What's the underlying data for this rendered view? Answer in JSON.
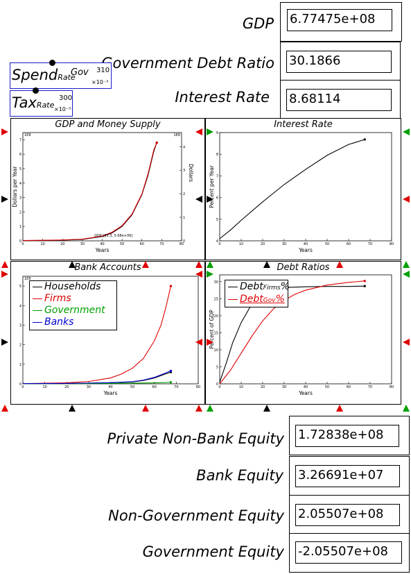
{
  "outputs": [
    {
      "label": "GDP",
      "value": "6.77475e+08"
    },
    {
      "label": "Government Debt Ratio",
      "value": "30.1866"
    },
    {
      "label": "Interest Rate",
      "value": "8.68114"
    },
    {
      "label": "Private Non-Bank Equity",
      "value": "1.72838e+08"
    },
    {
      "label": "Bank Equity",
      "value": "3.26691e+07"
    },
    {
      "label": "Non-Government Equity",
      "value": "2.05507e+08"
    },
    {
      "label": "Government Equity",
      "value": "-2.05507e+08"
    }
  ],
  "sliders": [
    {
      "main": "Spend",
      "sub": "Rate",
      "sup": "Gov",
      "value": "310",
      "multiplier": "×10⁻³"
    },
    {
      "main": "Tax",
      "sub": "Rate",
      "sup": "",
      "value": "300",
      "multiplier": "×10⁻³"
    }
  ],
  "colors": {
    "black": "#000000",
    "red": "#e00000",
    "green": "#00a000",
    "blue": "#0000d0",
    "slider_border": "#1a1ac8"
  },
  "charts": {
    "gdp": {
      "title": "GDP and Money Supply",
      "xlabel": "Years",
      "ylabel": "Dollars per Year",
      "ylabel_right": "Dollars",
      "left_scale": "1E8",
      "right_scale": "1E8",
      "xticks": [
        "0",
        "10",
        "20",
        "30",
        "40",
        "50",
        "60",
        "70",
        "80"
      ],
      "yticks_left": [
        "0",
        "1",
        "2",
        "3",
        "4",
        "5",
        "6",
        "7"
      ],
      "yticks_right": [
        "0",
        "1",
        "2",
        "3",
        "4"
      ],
      "annotation": "GDP [31.3, 5.68e+06]"
    },
    "interest": {
      "title": "Interest Rate",
      "xlabel": "Years",
      "ylabel": "Percent per Year",
      "xticks": [
        "0",
        "10",
        "20",
        "30",
        "40",
        "50",
        "60",
        "70",
        "80"
      ],
      "yticks": [
        "4",
        "5",
        "6",
        "7",
        "8",
        "9"
      ]
    },
    "bank": {
      "title": "Bank Accounts",
      "xlabel": "Years",
      "scale": "1E8",
      "xticks": [
        "0",
        "10",
        "20",
        "30",
        "40",
        "50",
        "60",
        "70",
        "80"
      ],
      "yticks": [
        "0",
        "1",
        "2",
        "3",
        "4",
        "5"
      ],
      "legend": [
        {
          "name": "Households",
          "color": "#000000"
        },
        {
          "name": "Firms",
          "color": "#e00000"
        },
        {
          "name": "Government",
          "color": "#00a000"
        },
        {
          "name": "Banks",
          "color": "#0000d0"
        }
      ]
    },
    "debt": {
      "title": "Debt Ratios",
      "xlabel": "Years",
      "ylabel": "Percent of GDP",
      "xticks": [
        "0",
        "10",
        "20",
        "30",
        "40",
        "50",
        "60",
        "70",
        "80"
      ],
      "yticks": [
        "0",
        "5",
        "10",
        "15",
        "20",
        "25",
        "30"
      ],
      "legend": [
        {
          "main": "Debt",
          "sub": "Firms",
          "suffix": "%",
          "color": "#000000"
        },
        {
          "main": "Debt",
          "sub": "Gov",
          "suffix": "%",
          "color": "#e00000"
        }
      ]
    }
  },
  "chart_data": [
    {
      "type": "line",
      "title": "GDP and Money Supply",
      "xlabel": "Years",
      "ylabel": "Dollars per Year",
      "xlim": [
        0,
        80
      ],
      "ylim": [
        0,
        7.5
      ],
      "series": [
        {
          "name": "GDP",
          "color": "#000000",
          "x": [
            0,
            10,
            20,
            30,
            40,
            45,
            50,
            55,
            60,
            63,
            66,
            67.5
          ],
          "y": [
            0.02,
            0.03,
            0.05,
            0.1,
            0.3,
            0.55,
            1.0,
            1.8,
            3.2,
            4.5,
            6.2,
            6.8
          ]
        },
        {
          "color": "#e00000",
          "x": [
            0,
            10,
            20,
            30,
            40,
            45,
            50,
            55,
            60,
            63,
            66,
            67.5
          ],
          "y": [
            0.02,
            0.04,
            0.06,
            0.12,
            0.33,
            0.6,
            1.05,
            1.85,
            3.25,
            4.6,
            6.3,
            6.8
          ]
        }
      ]
    },
    {
      "type": "line",
      "title": "Interest Rate",
      "xlabel": "Years",
      "ylabel": "Percent per Year",
      "xlim": [
        0,
        80
      ],
      "ylim": [
        4,
        9
      ],
      "series": [
        {
          "color": "#000000",
          "x": [
            0,
            5,
            10,
            20,
            30,
            40,
            50,
            60,
            67.5
          ],
          "y": [
            4.1,
            4.5,
            4.95,
            5.8,
            6.6,
            7.3,
            7.95,
            8.45,
            8.68
          ]
        }
      ]
    },
    {
      "type": "line",
      "title": "Bank Accounts",
      "xlabel": "Years",
      "xlim": [
        0,
        80
      ],
      "ylim": [
        0,
        5.5
      ],
      "series": [
        {
          "name": "Households",
          "color": "#000000",
          "x": [
            0,
            20,
            40,
            50,
            55,
            60,
            65,
            67.5
          ],
          "y": [
            0.01,
            0.02,
            0.05,
            0.1,
            0.17,
            0.3,
            0.5,
            0.6
          ]
        },
        {
          "name": "Firms",
          "color": "#e00000",
          "x": [
            0,
            20,
            30,
            40,
            45,
            50,
            55,
            60,
            63,
            65,
            67.5
          ],
          "y": [
            0.01,
            0.05,
            0.12,
            0.3,
            0.5,
            0.8,
            1.3,
            2.2,
            3.0,
            3.8,
            5.0
          ]
        },
        {
          "name": "Government",
          "color": "#00a000",
          "x": [
            0,
            20,
            40,
            60,
            67.5
          ],
          "y": [
            0.0,
            0.01,
            0.02,
            0.05,
            0.08
          ]
        },
        {
          "name": "Banks",
          "color": "#0000d0",
          "x": [
            0,
            20,
            40,
            50,
            55,
            60,
            65,
            67.5
          ],
          "y": [
            0.01,
            0.02,
            0.06,
            0.11,
            0.19,
            0.33,
            0.55,
            0.66
          ]
        }
      ]
    },
    {
      "type": "line",
      "title": "Debt Ratios",
      "xlabel": "Years",
      "ylabel": "Percent of GDP",
      "xlim": [
        0,
        80
      ],
      "ylim": [
        0,
        32
      ],
      "series": [
        {
          "name": "Debt Firms %",
          "color": "#000000",
          "x": [
            0,
            3,
            6,
            10,
            15,
            20,
            25,
            30,
            40,
            50,
            60,
            67.5
          ],
          "y": [
            0.5,
            6,
            12,
            18,
            23.5,
            26.5,
            27.8,
            28.3,
            28.5,
            28.6,
            28.6,
            28.7
          ]
        },
        {
          "name": "Debt Gov %",
          "color": "#e00000",
          "x": [
            0,
            5,
            10,
            15,
            20,
            25,
            30,
            35,
            40,
            50,
            60,
            67.5
          ],
          "y": [
            0,
            4,
            9,
            14,
            18.5,
            22,
            24.5,
            26.3,
            27.5,
            29,
            29.8,
            30.2
          ]
        }
      ]
    }
  ]
}
